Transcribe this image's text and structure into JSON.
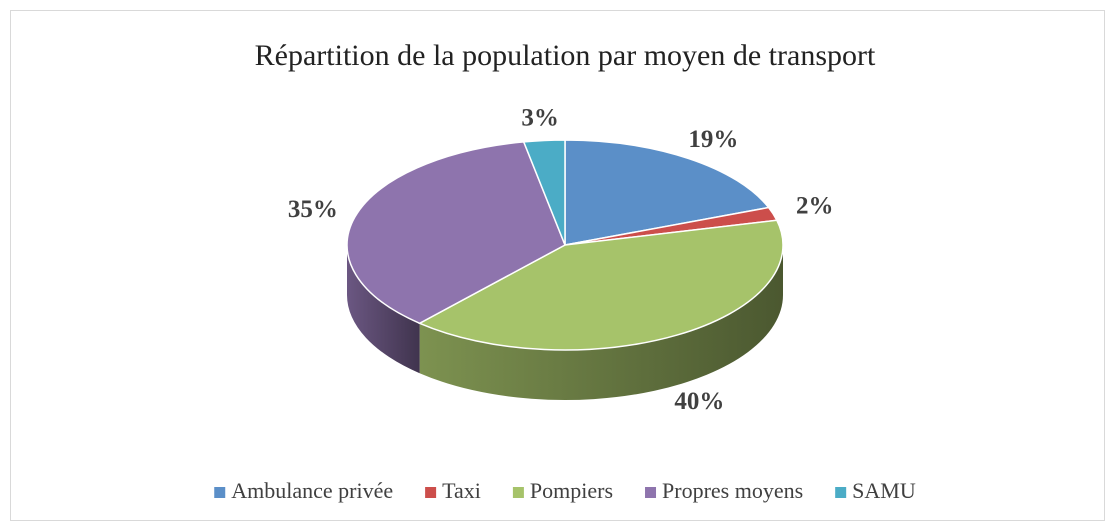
{
  "chart_data": {
    "type": "pie",
    "title": "Répartition de la population par moyen de transport",
    "categories": [
      "Ambulance privée",
      "Taxi",
      "Pompiers",
      "Propres moyens",
      "SAMU"
    ],
    "values": [
      19,
      2,
      40,
      35,
      3
    ],
    "value_labels": [
      "19%",
      "2%",
      "40%",
      "35%",
      "3%"
    ],
    "colors": [
      "#5b8fc8",
      "#cc4e4b",
      "#a6c36a",
      "#8e74ad",
      "#4bacc6"
    ],
    "legend": "bottom"
  }
}
